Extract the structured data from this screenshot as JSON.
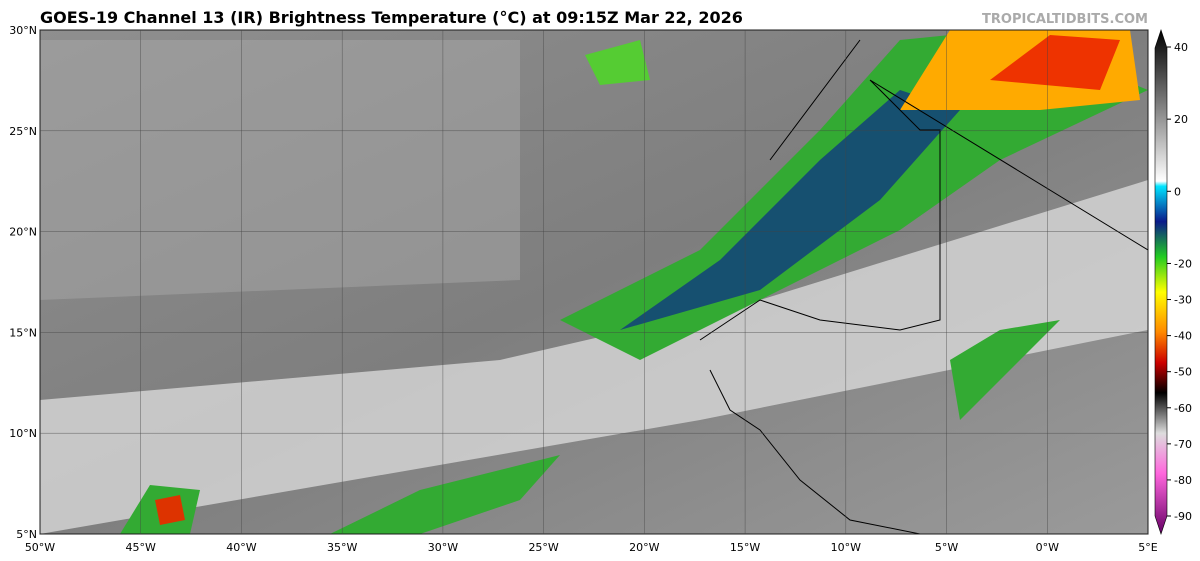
{
  "header": {
    "title": "GOES-19 Channel 13 (IR) Brightness Temperature (°C) at 09:15Z Mar 22, 2026",
    "credit": "TROPICALTIDBITS.COM"
  },
  "map": {
    "lat_labels": [
      "30°N",
      "25°N",
      "20°N",
      "15°N",
      "10°N",
      "5°N"
    ],
    "lon_labels": [
      "50°W",
      "45°W",
      "40°W",
      "35°W",
      "30°W",
      "25°W",
      "20°W",
      "15°W",
      "10°W",
      "5°W",
      "0°W",
      "5°E"
    ]
  },
  "colorbar": {
    "ticks": [
      40,
      20,
      0,
      -20,
      -30,
      -40,
      -50,
      -60,
      -70,
      -80,
      -90
    ]
  }
}
